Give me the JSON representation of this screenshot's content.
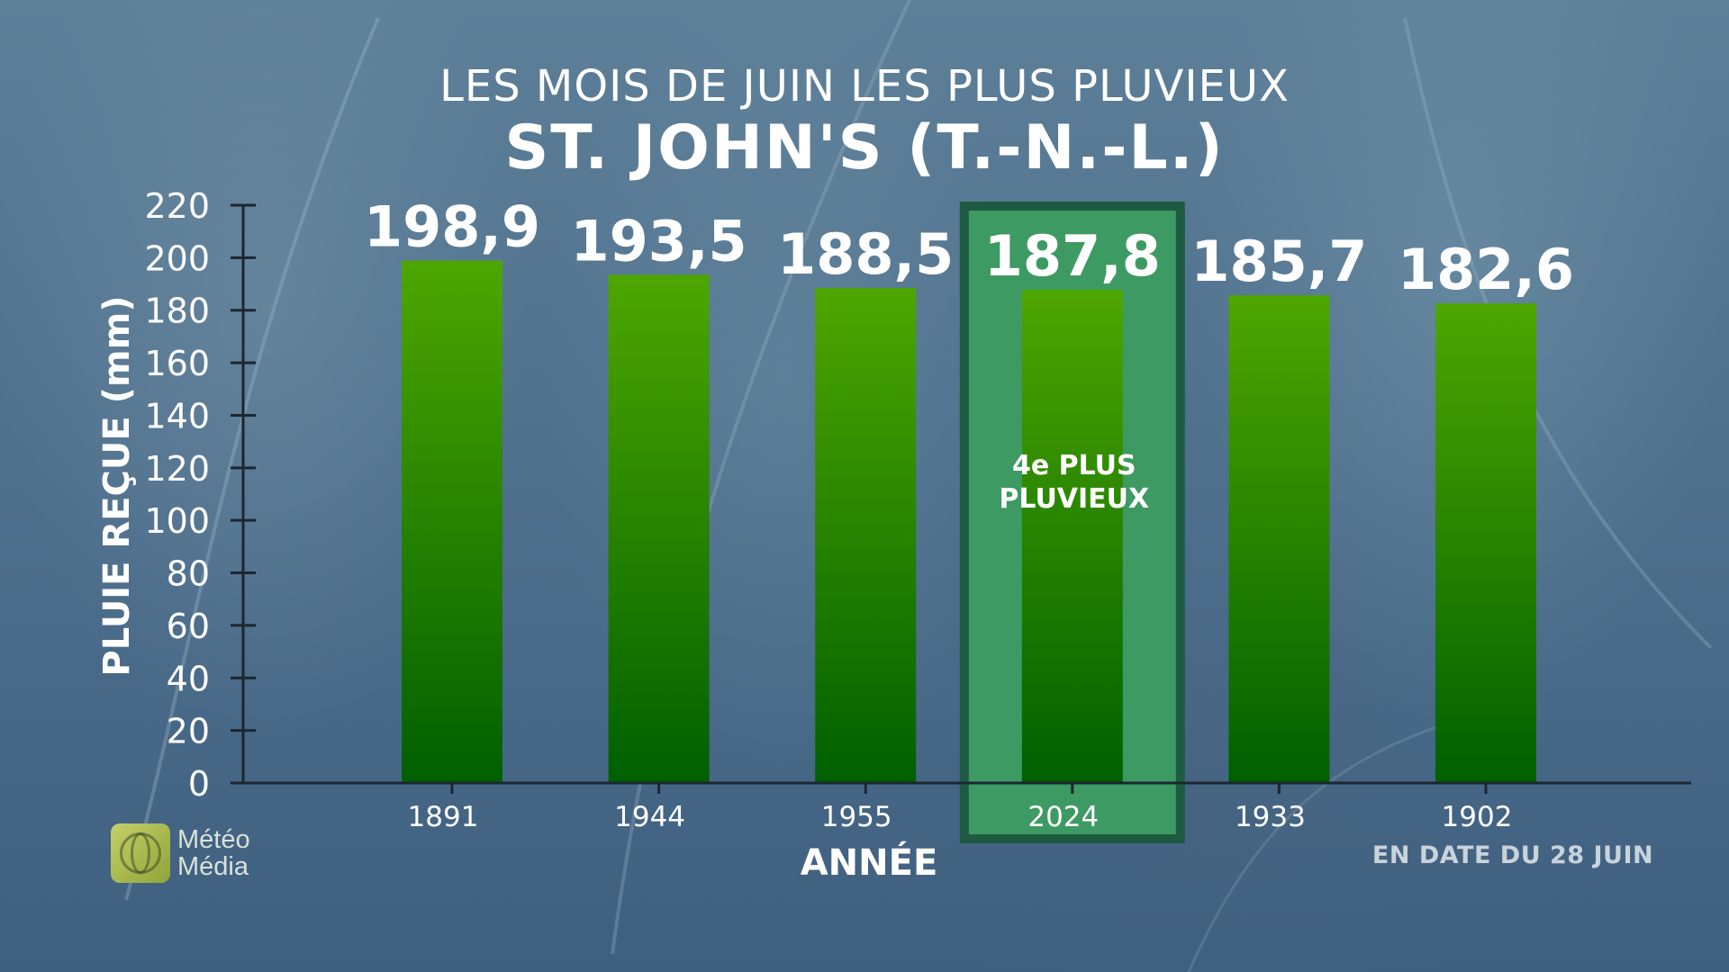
{
  "title": "LES MOIS DE JUIN LES PLUS PLUVIEUX",
  "subtitle": "ST. JOHN'S (T.-N.-L.)",
  "logo": {
    "line1": "Météo",
    "line2": "Média"
  },
  "note": "EN DATE DU 28 JUIN",
  "colors": {
    "bar_top": "#4ea600",
    "bar_bottom": "#005f00",
    "highlight_fill": "#3d9a62",
    "highlight_border": "#1e5a42",
    "axis": "#1c2630"
  },
  "chart_data": {
    "type": "bar",
    "title": "LES MOIS DE JUIN LES PLUS PLUVIEUX",
    "subtitle": "ST. JOHN'S (T.-N.-L.)",
    "xlabel": "ANNÉE",
    "ylabel": "PLUIE REÇUE (mm)",
    "categories": [
      "1891",
      "1944",
      "1955",
      "2024",
      "1933",
      "1902"
    ],
    "values": [
      198.9,
      193.5,
      188.5,
      187.8,
      185.7,
      182.6
    ],
    "value_labels": [
      "198,9",
      "193,5",
      "188,5",
      "187,8",
      "185,7",
      "182,6"
    ],
    "ylim": [
      0,
      220
    ],
    "yticks": [
      0,
      20,
      40,
      60,
      80,
      100,
      120,
      140,
      160,
      180,
      200,
      220
    ],
    "highlight": {
      "category": "2024",
      "annotation": [
        "4e PLUS",
        "PLUVIEUX"
      ]
    },
    "grid": false,
    "legend": "none"
  }
}
